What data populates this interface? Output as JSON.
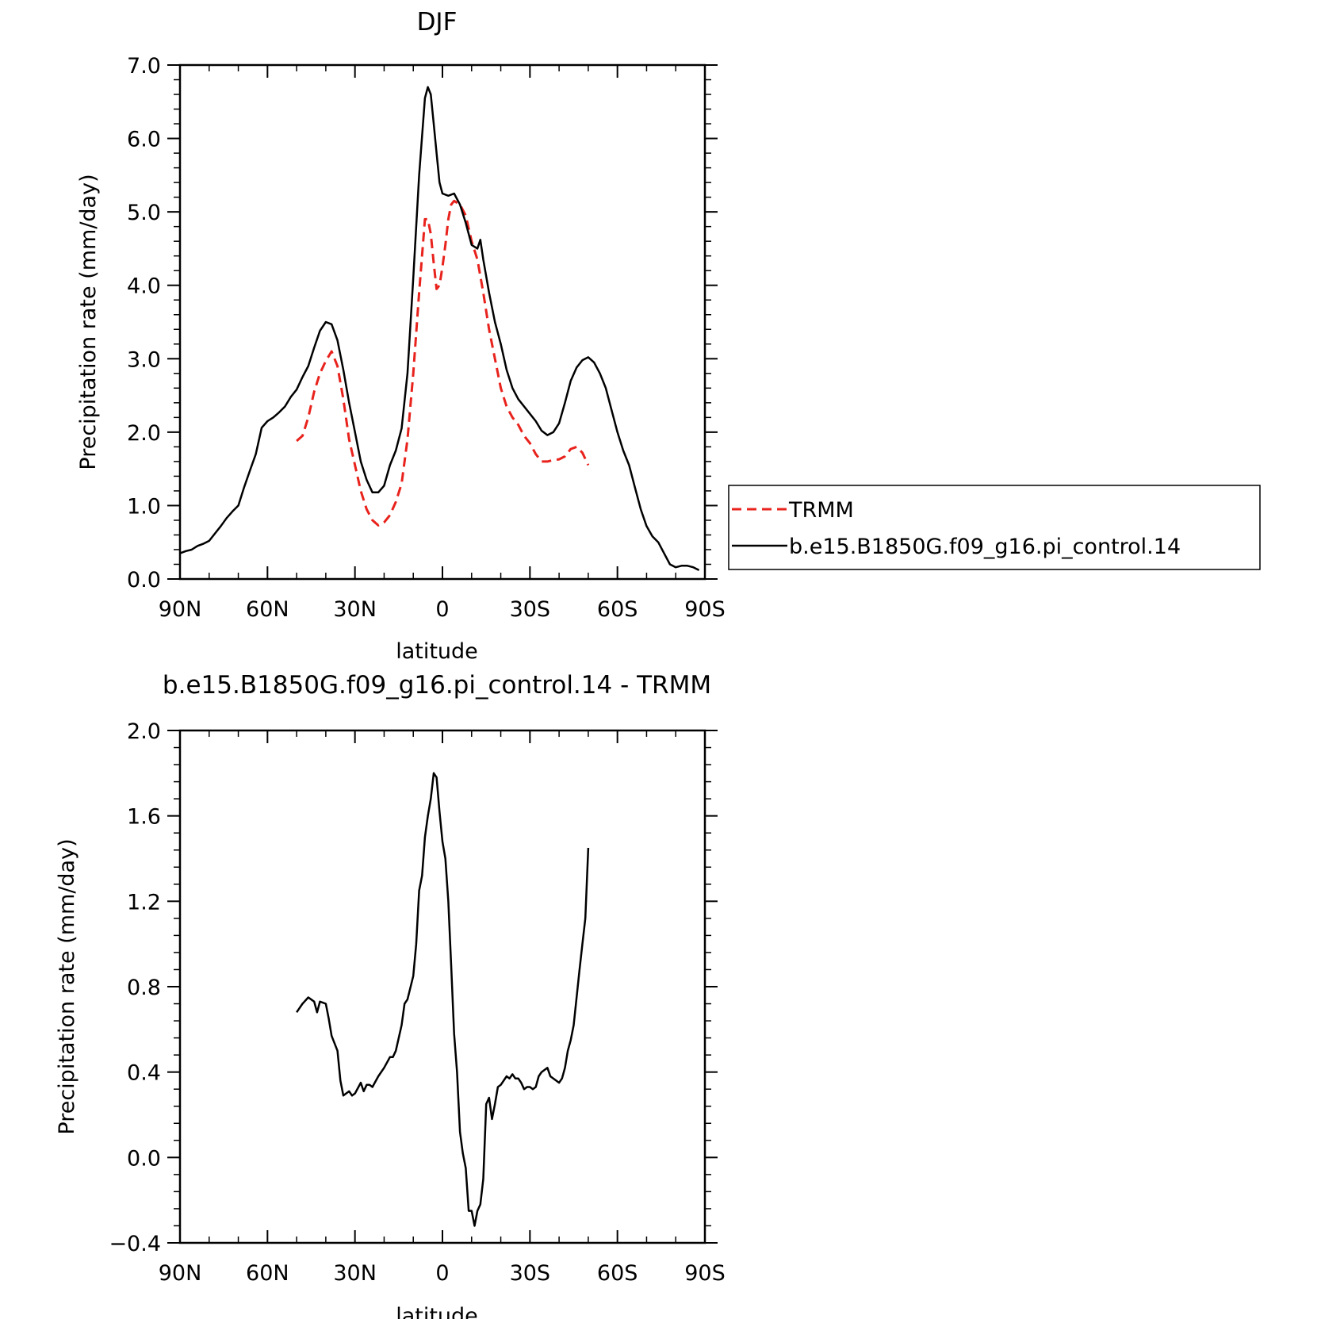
{
  "colors": {
    "trmm": "#e8221c",
    "model": "#000000"
  },
  "chart_data": [
    {
      "type": "line",
      "title": "DJF",
      "xlabel": "latitude",
      "ylabel": "Precipitation rate (mm/day)",
      "xlim": [
        90,
        -90
      ],
      "ylim": [
        0,
        7
      ],
      "x_ticks": [
        {
          "v": 90,
          "label": "90N"
        },
        {
          "v": 60,
          "label": "60N"
        },
        {
          "v": 30,
          "label": "30N"
        },
        {
          "v": 0,
          "label": "0"
        },
        {
          "v": -30,
          "label": "30S"
        },
        {
          "v": -60,
          "label": "60S"
        },
        {
          "v": -90,
          "label": "90S"
        }
      ],
      "y_ticks": [
        {
          "v": 0,
          "label": "0.0"
        },
        {
          "v": 1,
          "label": "1.0"
        },
        {
          "v": 2,
          "label": "2.0"
        },
        {
          "v": 3,
          "label": "3.0"
        },
        {
          "v": 4,
          "label": "4.0"
        },
        {
          "v": 5,
          "label": "5.0"
        },
        {
          "v": 6,
          "label": "6.0"
        },
        {
          "v": 7,
          "label": "7.0"
        }
      ],
      "legend_placement": "right",
      "series": [
        {
          "name": "TRMM",
          "style": "dashed",
          "points": [
            [
              50,
              1.88
            ],
            [
              48,
              1.95
            ],
            [
              46,
              2.2
            ],
            [
              44,
              2.55
            ],
            [
              42,
              2.8
            ],
            [
              40,
              2.97
            ],
            [
              38,
              3.1
            ],
            [
              36,
              2.9
            ],
            [
              34,
              2.45
            ],
            [
              32,
              1.9
            ],
            [
              30,
              1.55
            ],
            [
              28,
              1.2
            ],
            [
              26,
              0.95
            ],
            [
              24,
              0.8
            ],
            [
              22,
              0.73
            ],
            [
              20,
              0.77
            ],
            [
              18,
              0.87
            ],
            [
              16,
              1.05
            ],
            [
              14,
              1.3
            ],
            [
              12,
              1.9
            ],
            [
              10,
              2.8
            ],
            [
              8,
              3.9
            ],
            [
              6,
              4.9
            ],
            [
              5,
              4.9
            ],
            [
              4,
              4.7
            ],
            [
              3,
              4.3
            ],
            [
              2,
              3.95
            ],
            [
              1,
              4.0
            ],
            [
              0,
              4.25
            ],
            [
              -1,
              4.55
            ],
            [
              -2,
              4.9
            ],
            [
              -3,
              5.1
            ],
            [
              -4,
              5.15
            ],
            [
              -6,
              5.1
            ],
            [
              -8,
              4.95
            ],
            [
              -10,
              4.6
            ],
            [
              -12,
              4.35
            ],
            [
              -14,
              3.9
            ],
            [
              -16,
              3.4
            ],
            [
              -18,
              3.0
            ],
            [
              -20,
              2.6
            ],
            [
              -22,
              2.35
            ],
            [
              -24,
              2.2
            ],
            [
              -26,
              2.1
            ],
            [
              -28,
              1.95
            ],
            [
              -30,
              1.85
            ],
            [
              -32,
              1.7
            ],
            [
              -34,
              1.6
            ],
            [
              -36,
              1.6
            ],
            [
              -38,
              1.62
            ],
            [
              -40,
              1.63
            ],
            [
              -42,
              1.67
            ],
            [
              -44,
              1.77
            ],
            [
              -46,
              1.8
            ],
            [
              -48,
              1.72
            ],
            [
              -50,
              1.55
            ]
          ]
        },
        {
          "name": "b.e15.B1850G.f09_g16.pi_control.14",
          "style": "solid",
          "points": [
            [
              90,
              0.35
            ],
            [
              88,
              0.38
            ],
            [
              86,
              0.4
            ],
            [
              84,
              0.45
            ],
            [
              82,
              0.48
            ],
            [
              80,
              0.52
            ],
            [
              78,
              0.62
            ],
            [
              76,
              0.72
            ],
            [
              74,
              0.83
            ],
            [
              72,
              0.92
            ],
            [
              70,
              1.0
            ],
            [
              68,
              1.25
            ],
            [
              66,
              1.48
            ],
            [
              64,
              1.7
            ],
            [
              62,
              2.06
            ],
            [
              60,
              2.15
            ],
            [
              58,
              2.2
            ],
            [
              56,
              2.27
            ],
            [
              54,
              2.35
            ],
            [
              52,
              2.48
            ],
            [
              50,
              2.58
            ],
            [
              48,
              2.75
            ],
            [
              46,
              2.9
            ],
            [
              44,
              3.15
            ],
            [
              42,
              3.38
            ],
            [
              40,
              3.5
            ],
            [
              38,
              3.47
            ],
            [
              36,
              3.25
            ],
            [
              34,
              2.85
            ],
            [
              32,
              2.4
            ],
            [
              30,
              2.0
            ],
            [
              28,
              1.6
            ],
            [
              26,
              1.35
            ],
            [
              24,
              1.18
            ],
            [
              22,
              1.18
            ],
            [
              20,
              1.27
            ],
            [
              18,
              1.55
            ],
            [
              16,
              1.75
            ],
            [
              14,
              2.05
            ],
            [
              12,
              2.8
            ],
            [
              10,
              4.1
            ],
            [
              8,
              5.5
            ],
            [
              6,
              6.55
            ],
            [
              5,
              6.7
            ],
            [
              4,
              6.6
            ],
            [
              3,
              6.2
            ],
            [
              2,
              5.8
            ],
            [
              1,
              5.4
            ],
            [
              0,
              5.25
            ],
            [
              -2,
              5.22
            ],
            [
              -4,
              5.25
            ],
            [
              -6,
              5.1
            ],
            [
              -8,
              4.85
            ],
            [
              -10,
              4.55
            ],
            [
              -12,
              4.5
            ],
            [
              -13,
              4.62
            ],
            [
              -14,
              4.35
            ],
            [
              -16,
              3.9
            ],
            [
              -18,
              3.5
            ],
            [
              -20,
              3.2
            ],
            [
              -22,
              2.85
            ],
            [
              -24,
              2.6
            ],
            [
              -26,
              2.45
            ],
            [
              -28,
              2.35
            ],
            [
              -30,
              2.25
            ],
            [
              -32,
              2.15
            ],
            [
              -34,
              2.02
            ],
            [
              -36,
              1.96
            ],
            [
              -38,
              2.0
            ],
            [
              -40,
              2.12
            ],
            [
              -42,
              2.4
            ],
            [
              -44,
              2.7
            ],
            [
              -46,
              2.88
            ],
            [
              -48,
              2.98
            ],
            [
              -50,
              3.02
            ],
            [
              -52,
              2.95
            ],
            [
              -54,
              2.8
            ],
            [
              -56,
              2.6
            ],
            [
              -58,
              2.3
            ],
            [
              -60,
              2.0
            ],
            [
              -62,
              1.75
            ],
            [
              -64,
              1.55
            ],
            [
              -66,
              1.25
            ],
            [
              -68,
              0.95
            ],
            [
              -70,
              0.72
            ],
            [
              -72,
              0.58
            ],
            [
              -74,
              0.5
            ],
            [
              -76,
              0.35
            ],
            [
              -78,
              0.2
            ],
            [
              -80,
              0.16
            ],
            [
              -82,
              0.18
            ],
            [
              -84,
              0.18
            ],
            [
              -86,
              0.16
            ],
            [
              -88,
              0.12
            ]
          ]
        }
      ]
    },
    {
      "type": "line",
      "title": "b.e15.B1850G.f09_g16.pi_control.14 - TRMM",
      "xlabel": "latitude",
      "ylabel": "Precipitation rate (mm/day)",
      "xlim": [
        90,
        -90
      ],
      "ylim": [
        -0.4,
        2.0
      ],
      "x_ticks": [
        {
          "v": 90,
          "label": "90N"
        },
        {
          "v": 60,
          "label": "60N"
        },
        {
          "v": 30,
          "label": "30N"
        },
        {
          "v": 0,
          "label": "0"
        },
        {
          "v": -30,
          "label": "30S"
        },
        {
          "v": -60,
          "label": "60S"
        },
        {
          "v": -90,
          "label": "90S"
        }
      ],
      "y_ticks": [
        {
          "v": -0.4,
          "label": "−0.4"
        },
        {
          "v": 0,
          "label": "0.0"
        },
        {
          "v": 0.4,
          "label": "0.4"
        },
        {
          "v": 0.8,
          "label": "0.8"
        },
        {
          "v": 1.2,
          "label": "1.2"
        },
        {
          "v": 1.6,
          "label": "1.6"
        },
        {
          "v": 2.0,
          "label": "2.0"
        }
      ],
      "series": [
        {
          "style": "solid",
          "points": [
            [
              50,
              0.68
            ],
            [
              48,
              0.72
            ],
            [
              46,
              0.75
            ],
            [
              44,
              0.73
            ],
            [
              43,
              0.68
            ],
            [
              42,
              0.73
            ],
            [
              40,
              0.72
            ],
            [
              39,
              0.65
            ],
            [
              38,
              0.57
            ],
            [
              36,
              0.5
            ],
            [
              35,
              0.36
            ],
            [
              34,
              0.29
            ],
            [
              32,
              0.31
            ],
            [
              31,
              0.29
            ],
            [
              30,
              0.3
            ],
            [
              28,
              0.35
            ],
            [
              27,
              0.31
            ],
            [
              26,
              0.34
            ],
            [
              25,
              0.34
            ],
            [
              24,
              0.33
            ],
            [
              22,
              0.38
            ],
            [
              20,
              0.42
            ],
            [
              18,
              0.47
            ],
            [
              17,
              0.47
            ],
            [
              16,
              0.5
            ],
            [
              14,
              0.62
            ],
            [
              13,
              0.72
            ],
            [
              12,
              0.74
            ],
            [
              10,
              0.85
            ],
            [
              9,
              1.0
            ],
            [
              8,
              1.25
            ],
            [
              7,
              1.32
            ],
            [
              6,
              1.5
            ],
            [
              5,
              1.6
            ],
            [
              4,
              1.68
            ],
            [
              3,
              1.8
            ],
            [
              2,
              1.78
            ],
            [
              1,
              1.62
            ],
            [
              0,
              1.48
            ],
            [
              -1,
              1.4
            ],
            [
              -2,
              1.2
            ],
            [
              -3,
              0.9
            ],
            [
              -4,
              0.58
            ],
            [
              -5,
              0.4
            ],
            [
              -6,
              0.12
            ],
            [
              -7,
              0.02
            ],
            [
              -8,
              -0.05
            ],
            [
              -9,
              -0.25
            ],
            [
              -10,
              -0.25
            ],
            [
              -11,
              -0.32
            ],
            [
              -12,
              -0.25
            ],
            [
              -13,
              -0.22
            ],
            [
              -14,
              -0.1
            ],
            [
              -15,
              0.25
            ],
            [
              -16,
              0.28
            ],
            [
              -17,
              0.18
            ],
            [
              -18,
              0.25
            ],
            [
              -19,
              0.33
            ],
            [
              -20,
              0.34
            ],
            [
              -22,
              0.38
            ],
            [
              -23,
              0.37
            ],
            [
              -24,
              0.39
            ],
            [
              -25,
              0.37
            ],
            [
              -26,
              0.37
            ],
            [
              -27,
              0.35
            ],
            [
              -28,
              0.32
            ],
            [
              -29,
              0.33
            ],
            [
              -30,
              0.33
            ],
            [
              -31,
              0.32
            ],
            [
              -32,
              0.33
            ],
            [
              -33,
              0.38
            ],
            [
              -34,
              0.4
            ],
            [
              -35,
              0.41
            ],
            [
              -36,
              0.42
            ],
            [
              -37,
              0.38
            ],
            [
              -38,
              0.37
            ],
            [
              -39,
              0.36
            ],
            [
              -40,
              0.35
            ],
            [
              -41,
              0.37
            ],
            [
              -42,
              0.42
            ],
            [
              -43,
              0.5
            ],
            [
              -44,
              0.55
            ],
            [
              -45,
              0.62
            ],
            [
              -46,
              0.75
            ],
            [
              -47,
              0.88
            ],
            [
              -48,
              1.0
            ],
            [
              -49,
              1.12
            ],
            [
              -50,
              1.45
            ]
          ]
        }
      ]
    }
  ]
}
